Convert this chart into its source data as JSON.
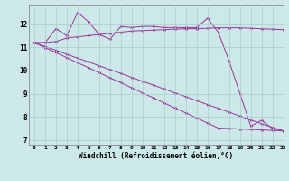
{
  "x": [
    0,
    1,
    2,
    3,
    4,
    5,
    6,
    7,
    8,
    9,
    10,
    11,
    12,
    13,
    14,
    15,
    16,
    17,
    18,
    19,
    20,
    21,
    22,
    23
  ],
  "line1": [
    11.2,
    11.2,
    11.8,
    11.5,
    12.5,
    12.1,
    11.55,
    11.35,
    11.9,
    11.85,
    11.9,
    11.9,
    11.85,
    11.85,
    11.85,
    11.85,
    12.25,
    11.65,
    10.4,
    9.0,
    7.6,
    7.85,
    7.5,
    7.4
  ],
  "line2": [
    11.2,
    11.2,
    11.25,
    11.4,
    11.45,
    11.5,
    11.55,
    11.6,
    11.65,
    11.7,
    11.72,
    11.74,
    11.76,
    11.78,
    11.8,
    11.8,
    11.82,
    11.84,
    11.84,
    11.84,
    11.82,
    11.8,
    11.78,
    11.76
  ],
  "line3": [
    11.2,
    10.98,
    10.77,
    10.55,
    10.33,
    10.12,
    9.9,
    9.68,
    9.47,
    9.25,
    9.03,
    8.82,
    8.6,
    8.38,
    8.17,
    7.95,
    7.73,
    7.52,
    7.5,
    7.48,
    7.46,
    7.44,
    7.42,
    7.4
  ],
  "line4": [
    11.2,
    11.03,
    10.87,
    10.7,
    10.53,
    10.37,
    10.2,
    10.03,
    9.87,
    9.7,
    9.53,
    9.37,
    9.2,
    9.03,
    8.87,
    8.7,
    8.53,
    8.37,
    8.2,
    8.03,
    7.87,
    7.7,
    7.55,
    7.4
  ],
  "line_color": "#993399",
  "bg_color": "#cce8e8",
  "grid_color": "#aacccc",
  "xlabel": "Windchill (Refroidissement éolien,°C)",
  "ylim": [
    6.8,
    12.8
  ],
  "xlim": [
    -0.5,
    23
  ],
  "yticks": [
    7,
    8,
    9,
    10,
    11,
    12
  ],
  "xticks": [
    0,
    1,
    2,
    3,
    4,
    5,
    6,
    7,
    8,
    9,
    10,
    11,
    12,
    13,
    14,
    15,
    16,
    17,
    18,
    19,
    20,
    21,
    22,
    23
  ]
}
